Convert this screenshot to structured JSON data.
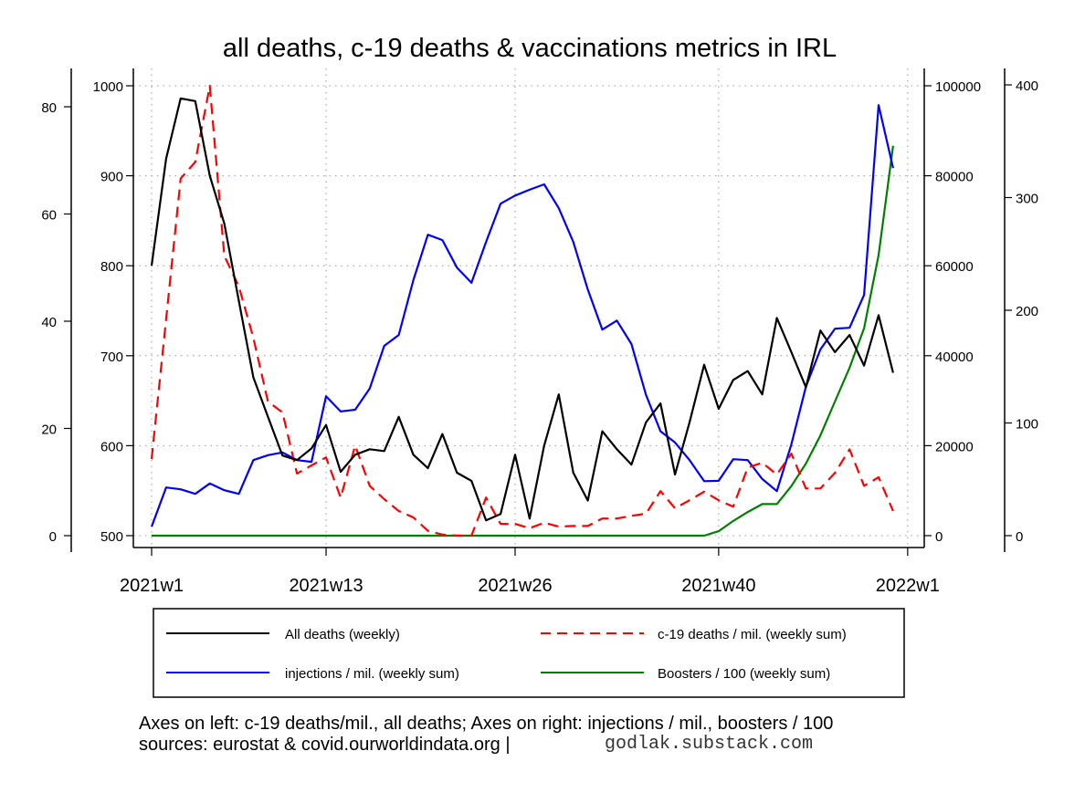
{
  "chart_data": {
    "type": "line",
    "title": "all deaths, c-19 deaths & vaccinations metrics in IRL",
    "x_tick_labels": [
      {
        "label": "2021w1",
        "week_index": 0
      },
      {
        "label": "2021w13",
        "week_index": 12
      },
      {
        "label": "2021w26",
        "week_index": 25
      },
      {
        "label": "2021w40",
        "week_index": 39
      },
      {
        "label": "2022w1",
        "week_index": 52
      }
    ],
    "x": "weeks 2021w1..2021w52 (index 0..51)",
    "axes": {
      "left_outer": {
        "name": "c-19 deaths / mil.",
        "ylim": [
          0,
          84
        ],
        "ticks": [
          "0",
          "20",
          "40",
          "60",
          "80"
        ]
      },
      "left_inner": {
        "name": "All deaths",
        "ylim": [
          500,
          1010
        ],
        "ticks": [
          "500",
          "600",
          "700",
          "800",
          "900",
          "1000"
        ]
      },
      "right_inner": {
        "name": "injections / mil.",
        "ylim": [
          0,
          102000
        ],
        "ticks": [
          "0",
          "20000",
          "40000",
          "60000",
          "80000",
          "100000"
        ]
      },
      "right_outer": {
        "name": "Boosters / 100",
        "ylim": [
          0,
          410
        ],
        "ticks": [
          "0",
          "100",
          "200",
          "300",
          "400"
        ]
      }
    },
    "grid": true,
    "legend_position": "bottom",
    "series": [
      {
        "name": "All deaths (weekly)",
        "axis": "left_inner",
        "color": "#000000",
        "dash": false,
        "values": [
          800,
          919,
          986,
          983,
          900,
          847,
          761,
          676,
          632,
          589,
          584,
          597,
          623,
          571,
          590,
          596,
          594,
          632,
          590,
          575,
          613,
          570,
          561,
          517,
          524,
          590,
          519,
          600,
          657,
          570,
          539,
          616,
          596,
          579,
          626,
          647,
          568,
          626,
          690,
          641,
          673,
          683,
          657,
          742,
          704,
          665,
          728,
          704,
          723,
          689,
          745,
          681
        ]
      },
      {
        "name": "c-19 deaths / mil. (weekly sum)",
        "axis": "left_outer",
        "color": "#ff0000",
        "dash": true,
        "values": [
          14.3,
          40.4,
          66.6,
          69.7,
          83.9,
          52.2,
          46.5,
          36.9,
          25,
          23,
          11.6,
          13.1,
          14.6,
          7.1,
          16.8,
          9.3,
          6.8,
          4.6,
          3.4,
          0.9,
          0.2,
          0,
          0,
          7.1,
          2.2,
          2.2,
          1.4,
          2.4,
          1.7,
          1.8,
          1.8,
          3.2,
          3.2,
          3.7,
          4.1,
          8.3,
          5.1,
          6.6,
          8.2,
          6.6,
          5.4,
          12.7,
          13.6,
          11.4,
          15.3,
          8.8,
          8.8,
          11.7,
          16.1,
          9.3,
          10.9,
          4.6
        ]
      },
      {
        "name": "injections / mil. (weekly sum)",
        "axis": "right_inner",
        "color": "#0000ff",
        "dash": false,
        "values": [
          2000,
          10700,
          10300,
          9300,
          11600,
          10100,
          9300,
          16800,
          17900,
          18500,
          16800,
          16400,
          31000,
          27600,
          28000,
          32700,
          42200,
          44600,
          56800,
          66900,
          65700,
          59600,
          56200,
          65300,
          73800,
          75600,
          76900,
          78100,
          72800,
          65300,
          54700,
          45800,
          47800,
          42600,
          31300,
          23200,
          20700,
          16800,
          12100,
          12200,
          17000,
          16800,
          12600,
          9900,
          20300,
          33100,
          41400,
          46000,
          46200,
          53500,
          95700,
          81700
        ]
      },
      {
        "name": "Boosters / 100 (weekly sum)",
        "axis": "right_outer",
        "color": "#008000",
        "dash": false,
        "values": [
          0,
          0,
          0,
          0,
          0,
          0,
          0,
          0,
          0,
          0,
          0,
          0,
          0,
          0,
          0,
          0,
          0,
          0,
          0,
          0,
          0,
          0,
          0,
          0,
          0,
          0,
          0,
          0,
          0,
          0,
          0,
          0,
          0,
          0,
          0,
          0,
          0,
          0,
          0,
          4,
          13,
          21,
          28,
          28,
          44,
          64,
          89,
          119,
          149,
          184,
          249,
          346
        ]
      }
    ],
    "legend": [
      "All deaths (weekly)",
      "c-19 deaths / mil. (weekly sum)",
      "injections / mil. (weekly sum)",
      "Boosters / 100 (weekly sum)"
    ],
    "footer_line1": "Axes on left: c-19 deaths/mil., all deaths; Axes on right: injections / mil., boosters / 100",
    "footer_line2": "sources: eurostat & covid.ourworldindata.org |",
    "footer_site": "godlak.substack.com"
  }
}
